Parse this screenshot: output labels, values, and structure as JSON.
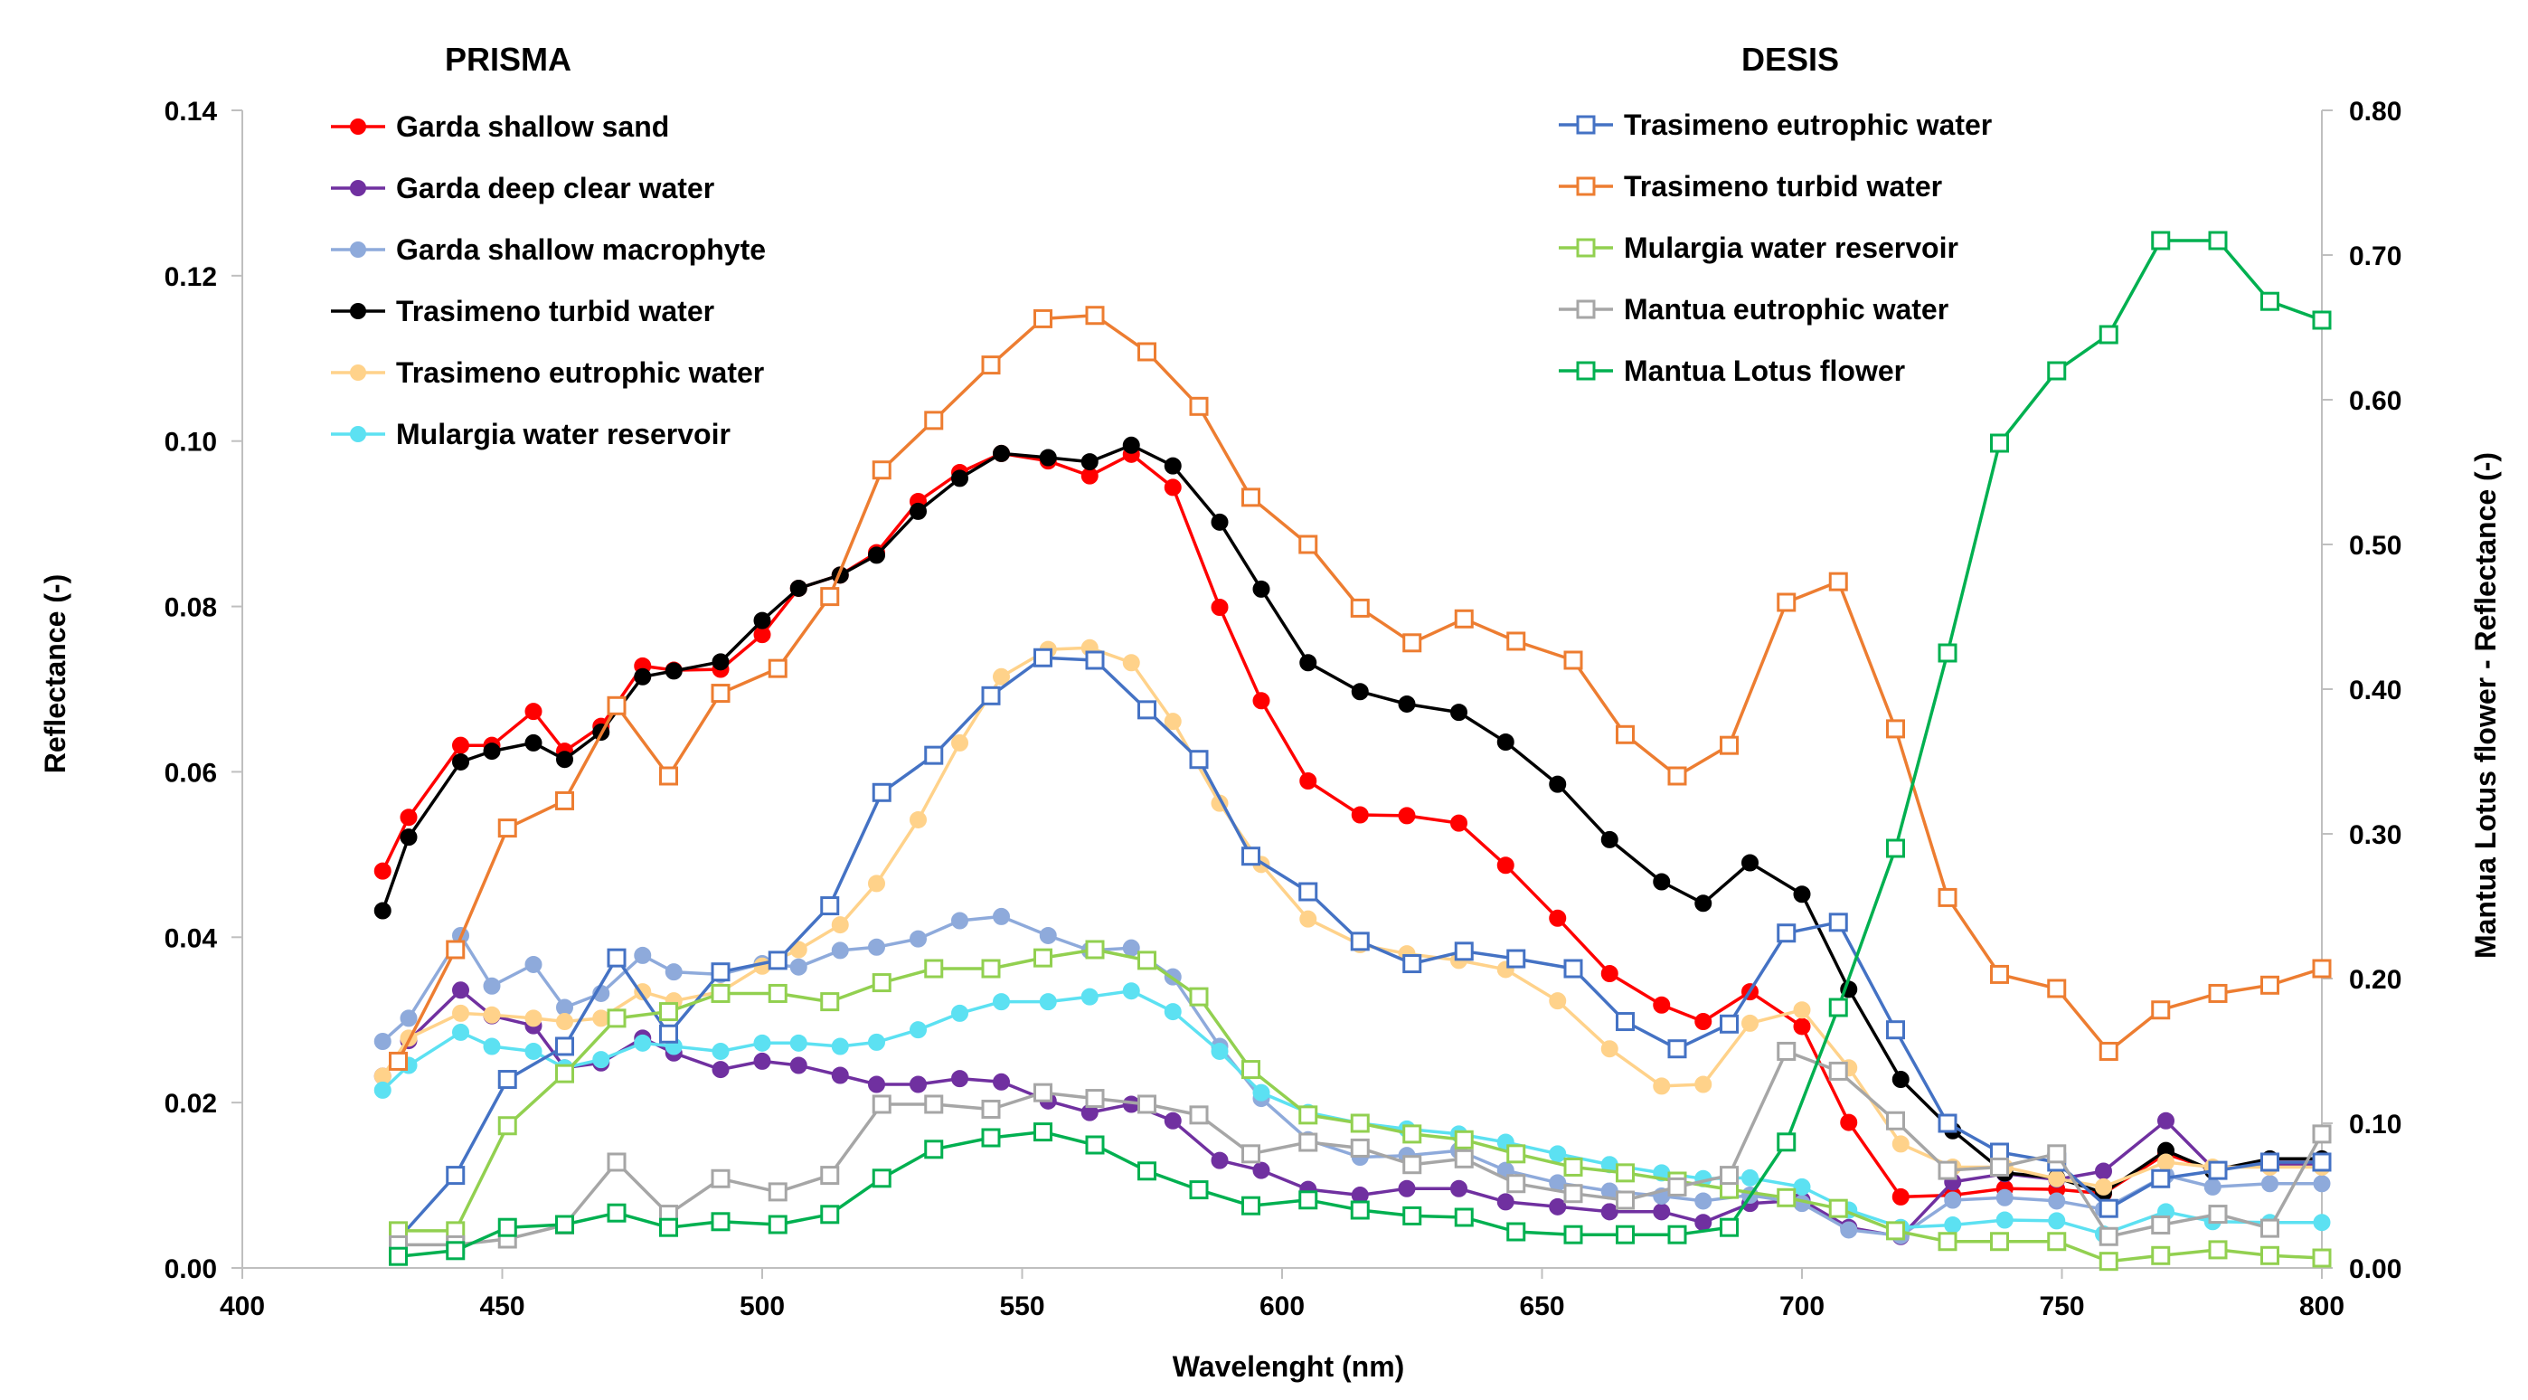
{
  "chart_data": {
    "type": "line",
    "titles": {
      "left_legend": "PRISMA",
      "right_legend": "DESIS"
    },
    "xlabel": "Wavelenght (nm)",
    "ylabel": "Reflectance (-)",
    "y2label": "Mantua Lotus flower - Reflectance (-)",
    "xlim": [
      400,
      800
    ],
    "ylim": [
      0,
      0.14
    ],
    "y2lim": [
      0,
      0.8
    ],
    "x_ticks": [
      "400",
      "450",
      "500",
      "550",
      "600",
      "650",
      "700",
      "750",
      "800"
    ],
    "y_ticks": [
      "0.00",
      "0.02",
      "0.04",
      "0.06",
      "0.08",
      "0.10",
      "0.12",
      "0.14"
    ],
    "y2_ticks": [
      "0.00",
      "0.10",
      "0.20",
      "0.30",
      "0.40",
      "0.50",
      "0.60",
      "0.70",
      "0.80"
    ],
    "prisma_x": [
      427,
      432,
      442,
      448,
      456,
      462,
      469,
      477,
      483,
      492,
      500,
      507,
      515,
      522,
      530,
      538,
      546,
      555,
      563,
      571,
      579,
      588,
      596,
      605,
      615,
      624,
      634,
      643,
      653,
      663,
      673,
      681,
      690,
      700,
      709,
      719,
      729,
      739,
      749,
      758,
      770,
      779,
      790,
      800
    ],
    "desis_x": [
      430,
      441,
      451,
      462,
      472,
      482,
      492,
      503,
      513,
      523,
      533,
      544,
      554,
      564,
      574,
      584,
      594,
      605,
      615,
      625,
      635,
      645,
      656,
      666,
      676,
      686,
      697,
      707,
      718,
      728,
      738,
      749,
      759,
      769,
      780,
      790,
      800
    ],
    "series": [
      {
        "name": "Garda shallow sand",
        "group": "PRISMA",
        "color": "#ff0000",
        "marker": "circle",
        "values": [
          0.048,
          0.0545,
          0.0632,
          0.0632,
          0.0673,
          0.0625,
          0.0655,
          0.0728,
          0.0723,
          0.0724,
          0.0766,
          0.0822,
          0.0838,
          0.0865,
          0.0927,
          0.0962,
          0.0985,
          0.0976,
          0.0958,
          0.0984,
          0.0944,
          0.0799,
          0.0686,
          0.0589,
          0.0548,
          0.0547,
          0.0538,
          0.0487,
          0.0423,
          0.0356,
          0.0318,
          0.0298,
          0.0334,
          0.0292,
          0.0176,
          0.0086,
          0.0088,
          0.0096,
          0.0095,
          0.009,
          0.0138,
          0.0119,
          0.0128,
          0.0128
        ]
      },
      {
        "name": "Garda deep clear water",
        "group": "PRISMA",
        "color": "#7030a0",
        "marker": "circle",
        "values": [
          0.0232,
          0.0275,
          0.0336,
          0.0305,
          0.0293,
          0.0242,
          0.0248,
          0.0278,
          0.026,
          0.024,
          0.025,
          0.0245,
          0.0233,
          0.0222,
          0.0222,
          0.0229,
          0.0225,
          0.0202,
          0.0188,
          0.0198,
          0.0178,
          0.013,
          0.0118,
          0.0095,
          0.0088,
          0.0096,
          0.0096,
          0.008,
          0.0074,
          0.0068,
          0.0068,
          0.0055,
          0.0078,
          0.0082,
          0.0049,
          0.0038,
          0.0104,
          0.0114,
          0.0107,
          0.0117,
          0.0178,
          0.0121,
          0.0125,
          0.0125
        ]
      },
      {
        "name": "Garda shallow macrophyte",
        "group": "PRISMA",
        "color": "#8eaadb",
        "marker": "circle",
        "values": [
          0.0274,
          0.0302,
          0.0402,
          0.0341,
          0.0367,
          0.0315,
          0.0332,
          0.0378,
          0.0358,
          0.0355,
          0.0368,
          0.0364,
          0.0384,
          0.0388,
          0.0398,
          0.042,
          0.0425,
          0.0402,
          0.0384,
          0.0387,
          0.0352,
          0.0268,
          0.0205,
          0.0155,
          0.0134,
          0.0136,
          0.0142,
          0.0118,
          0.0103,
          0.0093,
          0.0087,
          0.0081,
          0.0088,
          0.0078,
          0.0046,
          0.0039,
          0.0082,
          0.0085,
          0.0081,
          0.0071,
          0.0112,
          0.0098,
          0.0102,
          0.0102
        ]
      },
      {
        "name": "Trasimeno turbid water",
        "group": "PRISMA",
        "color": "#000000",
        "marker": "circle",
        "values": [
          0.0432,
          0.0521,
          0.0612,
          0.0625,
          0.0635,
          0.0615,
          0.0648,
          0.0715,
          0.0722,
          0.0733,
          0.0783,
          0.0822,
          0.0838,
          0.0862,
          0.0915,
          0.0955,
          0.0985,
          0.098,
          0.0975,
          0.0995,
          0.097,
          0.0902,
          0.0821,
          0.0732,
          0.0697,
          0.0682,
          0.0672,
          0.0636,
          0.0585,
          0.0518,
          0.0467,
          0.0441,
          0.049,
          0.0452,
          0.0337,
          0.0228,
          0.0166,
          0.0115,
          0.0109,
          0.0091,
          0.0142,
          0.0118,
          0.0132,
          0.0132
        ]
      },
      {
        "name": "Trasimeno eutrophic water",
        "group": "PRISMA",
        "color": "#ffd28a",
        "marker": "circle",
        "values": [
          0.0232,
          0.0278,
          0.0308,
          0.0306,
          0.0302,
          0.0298,
          0.0302,
          0.0334,
          0.0323,
          0.0334,
          0.0365,
          0.0385,
          0.0415,
          0.0465,
          0.0542,
          0.0635,
          0.0715,
          0.0748,
          0.075,
          0.0732,
          0.0661,
          0.0562,
          0.0488,
          0.0422,
          0.0391,
          0.038,
          0.0372,
          0.0361,
          0.0323,
          0.0265,
          0.022,
          0.0222,
          0.0296,
          0.0312,
          0.0242,
          0.015,
          0.0122,
          0.0122,
          0.0108,
          0.0098,
          0.0128,
          0.0122,
          0.0122,
          0.0122
        ]
      },
      {
        "name": "Mulargia water reservoir",
        "group": "PRISMA",
        "color": "#5ce1f2",
        "marker": "circle",
        "values": [
          0.0215,
          0.0245,
          0.0285,
          0.0268,
          0.0262,
          0.0242,
          0.0252,
          0.0272,
          0.0268,
          0.0262,
          0.0272,
          0.0272,
          0.0268,
          0.0273,
          0.0288,
          0.0308,
          0.0322,
          0.0322,
          0.0328,
          0.0335,
          0.031,
          0.0262,
          0.0212,
          0.0188,
          0.0175,
          0.0168,
          0.0162,
          0.0152,
          0.0138,
          0.0125,
          0.0115,
          0.0108,
          0.0109,
          0.0098,
          0.007,
          0.0049,
          0.0052,
          0.0058,
          0.0057,
          0.0041,
          0.0068,
          0.0056,
          0.0055,
          0.0055
        ]
      },
      {
        "name": "Trasimeno eutrophic water",
        "group": "DESIS",
        "color": "#4472c4",
        "marker": "square",
        "axis": "left",
        "values": [
          0.0035,
          0.0112,
          0.0228,
          0.0268,
          0.0375,
          0.0283,
          0.0358,
          0.0372,
          0.0438,
          0.0575,
          0.062,
          0.0692,
          0.0738,
          0.0735,
          0.0675,
          0.0615,
          0.0498,
          0.0455,
          0.0395,
          0.0368,
          0.0383,
          0.0374,
          0.0362,
          0.0298,
          0.0265,
          0.0295,
          0.0405,
          0.0418,
          0.0288,
          0.0175,
          0.014,
          0.0128,
          0.0072,
          0.0108,
          0.0118,
          0.0128,
          0.0128
        ]
      },
      {
        "name": "Trasimeno turbid water",
        "group": "DESIS",
        "color": "#ed7d31",
        "marker": "square",
        "axis": "left",
        "values": [
          0.025,
          0.0385,
          0.0532,
          0.0565,
          0.068,
          0.0595,
          0.0695,
          0.0725,
          0.0812,
          0.0965,
          0.1025,
          0.1092,
          0.1148,
          0.1152,
          0.1108,
          0.1042,
          0.0932,
          0.0875,
          0.0798,
          0.0756,
          0.0785,
          0.0758,
          0.0735,
          0.0645,
          0.0595,
          0.0632,
          0.0805,
          0.083,
          0.0652,
          0.0448,
          0.0355,
          0.0338,
          0.0262,
          0.0312,
          0.0332,
          0.0342,
          0.0362
        ]
      },
      {
        "name": "Mulargia water reservoir",
        "group": "DESIS",
        "color": "#92d050",
        "marker": "square",
        "axis": "left",
        "values": [
          0.0045,
          0.0045,
          0.0172,
          0.0235,
          0.0302,
          0.031,
          0.0332,
          0.0332,
          0.0322,
          0.0345,
          0.0362,
          0.0362,
          0.0375,
          0.0385,
          0.0372,
          0.0328,
          0.024,
          0.0185,
          0.0175,
          0.0162,
          0.0155,
          0.0138,
          0.0122,
          0.0115,
          0.0105,
          0.0095,
          0.0085,
          0.0072,
          0.0045,
          0.0032,
          0.0032,
          0.0032,
          0.0008,
          0.0015,
          0.0022,
          0.0015,
          0.0012
        ]
      },
      {
        "name": "Mantua eutrophic water",
        "group": "DESIS",
        "color": "#a6a6a6",
        "marker": "square",
        "axis": "left",
        "values": [
          0.0028,
          0.0028,
          0.0035,
          0.0052,
          0.0128,
          0.0065,
          0.0108,
          0.0092,
          0.0112,
          0.0198,
          0.0198,
          0.0192,
          0.0212,
          0.0205,
          0.0198,
          0.0185,
          0.0138,
          0.0152,
          0.0145,
          0.0125,
          0.0132,
          0.0102,
          0.009,
          0.0082,
          0.0098,
          0.0112,
          0.0262,
          0.0238,
          0.0178,
          0.0118,
          0.0122,
          0.0138,
          0.0038,
          0.0052,
          0.0065,
          0.0048,
          0.0162
        ]
      },
      {
        "name": "Mantua Lotus flower",
        "group": "DESIS",
        "color": "#00b050",
        "marker": "square",
        "axis": "right",
        "values": [
          0.008,
          0.012,
          0.028,
          0.03,
          0.038,
          0.028,
          0.032,
          0.03,
          0.037,
          0.062,
          0.082,
          0.09,
          0.094,
          0.085,
          0.067,
          0.054,
          0.043,
          0.047,
          0.04,
          0.036,
          0.035,
          0.025,
          0.023,
          0.023,
          0.023,
          0.028,
          0.087,
          0.18,
          0.29,
          0.425,
          0.57,
          0.62,
          0.645,
          0.71,
          0.71,
          0.668,
          0.655
        ]
      }
    ]
  }
}
